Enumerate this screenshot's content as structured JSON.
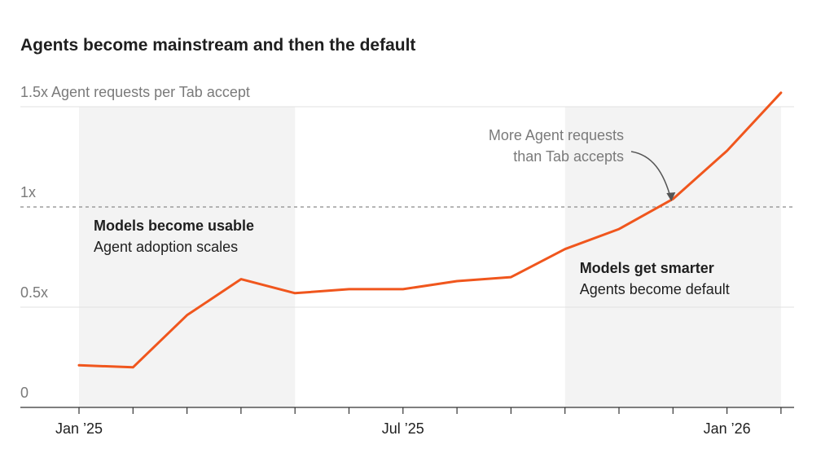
{
  "chart_data": {
    "type": "line",
    "title": "Agents become mainstream and then the default",
    "ylabel": "Agent requests per Tab accept",
    "y_ticks": [
      "0",
      "0.5x",
      "1x",
      "1.5x"
    ],
    "y_tick_values": [
      0,
      0.5,
      1,
      1.5
    ],
    "ylim": [
      0,
      1.5
    ],
    "x_tick_labels": [
      {
        "label": "Jan ’25",
        "index": 0
      },
      {
        "label": "Jul ’25",
        "index": 6
      },
      {
        "label": "Jan ’26",
        "index": 12
      }
    ],
    "x_tick_count": 14,
    "values": [
      0.21,
      0.2,
      0.46,
      0.64,
      0.57,
      0.59,
      0.59,
      0.63,
      0.65,
      0.79,
      0.89,
      1.04,
      1.28,
      1.57
    ],
    "reference_line": {
      "value": 1,
      "style": "dashed"
    },
    "bands": [
      {
        "start_index": 0,
        "end_index": 4,
        "heading": "Models become usable",
        "subheading": "Agent adoption scales"
      },
      {
        "start_index": 9,
        "end_index": 13,
        "heading": "Models get smarter",
        "subheading": "Agents become default"
      }
    ],
    "annotation": {
      "lines": [
        "More Agent requests",
        "than Tab accepts"
      ],
      "target_index": 11
    },
    "line_color": "#f0561d",
    "band_color": "#f3f3f3",
    "grid": true,
    "legend": "none"
  }
}
